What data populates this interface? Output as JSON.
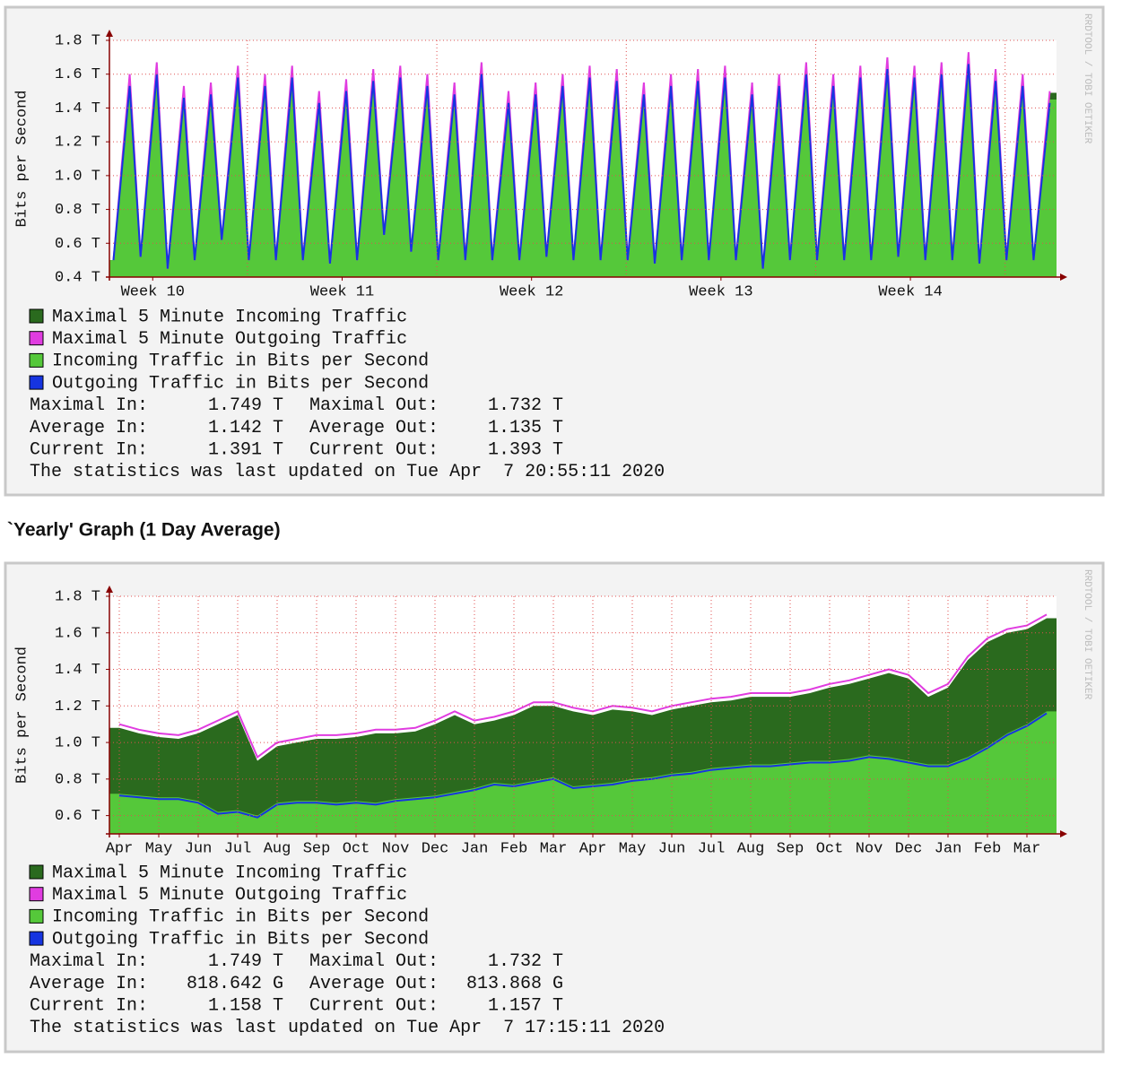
{
  "section_title": "`Yearly' Graph (1 Day Average)",
  "chart_data": [
    {
      "type": "area",
      "y_label": "Bits per Second",
      "side_text": "RRDTOOL / TOBI OETIKER",
      "grid": true,
      "xlim": [
        0,
        35
      ],
      "xticks": [
        {
          "value": 1.6,
          "label": "Week 10"
        },
        {
          "value": 8.6,
          "label": "Week 11"
        },
        {
          "value": 15.6,
          "label": "Week 12"
        },
        {
          "value": 22.6,
          "label": "Week 13"
        },
        {
          "value": 29.6,
          "label": "Week 14"
        }
      ],
      "xgrid": [
        5.1,
        12.1,
        19.1,
        26.1,
        33.1
      ],
      "ylim": [
        0.4,
        1.8
      ],
      "yticks": [
        {
          "value": 0.4,
          "label": "0.4 T"
        },
        {
          "value": 0.6,
          "label": "0.6 T"
        },
        {
          "value": 0.8,
          "label": "0.8 T"
        },
        {
          "value": 1.0,
          "label": "1.0 T"
        },
        {
          "value": 1.2,
          "label": "1.2 T"
        },
        {
          "value": 1.4,
          "label": "1.4 T"
        },
        {
          "value": 1.6,
          "label": "1.6 T"
        },
        {
          "value": 1.8,
          "label": "1.8 T"
        }
      ],
      "x": [
        0.15,
        0.75,
        1.15,
        1.75,
        2.15,
        2.75,
        3.15,
        3.75,
        4.15,
        4.75,
        5.15,
        5.75,
        6.15,
        6.75,
        7.15,
        7.75,
        8.15,
        8.75,
        9.15,
        9.75,
        10.15,
        10.75,
        11.15,
        11.75,
        12.15,
        12.75,
        13.15,
        13.75,
        14.15,
        14.75,
        15.15,
        15.75,
        16.15,
        16.75,
        17.15,
        17.75,
        18.15,
        18.75,
        19.15,
        19.75,
        20.15,
        20.75,
        21.15,
        21.75,
        22.15,
        22.75,
        23.15,
        23.75,
        24.15,
        24.75,
        25.15,
        25.75,
        26.15,
        26.75,
        27.15,
        27.75,
        28.15,
        28.75,
        29.15,
        29.75,
        30.15,
        30.75,
        31.15,
        31.75,
        32.15,
        32.75,
        33.15,
        33.75,
        34.15,
        34.75
      ],
      "series": [
        {
          "name": "Maximal 5 Minute Incoming Traffic",
          "color": "#2a6a1e",
          "style": "area",
          "values": [
            0.5,
            1.59,
            0.52,
            1.66,
            0.45,
            1.52,
            0.5,
            1.54,
            0.62,
            1.64,
            0.5,
            1.59,
            0.5,
            1.64,
            0.5,
            1.49,
            0.48,
            1.56,
            0.5,
            1.62,
            0.65,
            1.64,
            0.55,
            1.59,
            0.5,
            1.54,
            0.5,
            1.66,
            0.5,
            1.49,
            0.5,
            1.54,
            0.52,
            1.59,
            0.5,
            1.64,
            0.5,
            1.62,
            0.5,
            1.54,
            0.48,
            1.59,
            0.5,
            1.62,
            0.5,
            1.64,
            0.5,
            1.54,
            0.45,
            1.59,
            0.5,
            1.66,
            0.5,
            1.59,
            0.5,
            1.64,
            0.5,
            1.69,
            0.52,
            1.64,
            0.5,
            1.66,
            0.5,
            1.72,
            0.48,
            1.62,
            0.5,
            1.59,
            0.5,
            1.49
          ]
        },
        {
          "name": "Maximal 5 Minute Outgoing Traffic",
          "color": "#e03ce0",
          "style": "line",
          "values": [
            0.5,
            1.6,
            0.52,
            1.67,
            0.45,
            1.53,
            0.5,
            1.55,
            0.62,
            1.65,
            0.5,
            1.6,
            0.5,
            1.65,
            0.5,
            1.5,
            0.48,
            1.57,
            0.5,
            1.63,
            0.65,
            1.65,
            0.55,
            1.6,
            0.5,
            1.55,
            0.5,
            1.67,
            0.5,
            1.5,
            0.5,
            1.55,
            0.52,
            1.6,
            0.5,
            1.65,
            0.5,
            1.63,
            0.5,
            1.55,
            0.48,
            1.6,
            0.5,
            1.63,
            0.5,
            1.65,
            0.5,
            1.55,
            0.45,
            1.6,
            0.5,
            1.67,
            0.5,
            1.6,
            0.5,
            1.65,
            0.5,
            1.7,
            0.52,
            1.65,
            0.5,
            1.67,
            0.5,
            1.73,
            0.48,
            1.63,
            0.5,
            1.6,
            0.5,
            1.5
          ]
        },
        {
          "name": "Incoming Traffic in Bits per Second",
          "color": "#55c83a",
          "style": "area",
          "values": [
            0.5,
            1.55,
            0.52,
            1.62,
            0.45,
            1.48,
            0.5,
            1.5,
            0.62,
            1.6,
            0.5,
            1.55,
            0.5,
            1.6,
            0.5,
            1.45,
            0.48,
            1.52,
            0.5,
            1.58,
            0.65,
            1.6,
            0.55,
            1.55,
            0.5,
            1.5,
            0.5,
            1.62,
            0.5,
            1.45,
            0.5,
            1.5,
            0.52,
            1.55,
            0.5,
            1.6,
            0.5,
            1.58,
            0.5,
            1.5,
            0.48,
            1.55,
            0.5,
            1.58,
            0.5,
            1.6,
            0.5,
            1.5,
            0.45,
            1.55,
            0.5,
            1.62,
            0.5,
            1.55,
            0.5,
            1.6,
            0.5,
            1.65,
            0.52,
            1.6,
            0.5,
            1.62,
            0.5,
            1.68,
            0.48,
            1.58,
            0.5,
            1.55,
            0.5,
            1.45
          ]
        },
        {
          "name": "Outgoing Traffic in Bits per Second",
          "color": "#1634e0",
          "style": "line",
          "values": [
            0.5,
            1.53,
            0.52,
            1.6,
            0.45,
            1.46,
            0.5,
            1.48,
            0.62,
            1.58,
            0.5,
            1.53,
            0.5,
            1.58,
            0.5,
            1.43,
            0.48,
            1.5,
            0.5,
            1.56,
            0.65,
            1.58,
            0.55,
            1.53,
            0.5,
            1.48,
            0.5,
            1.6,
            0.5,
            1.43,
            0.5,
            1.48,
            0.52,
            1.53,
            0.5,
            1.58,
            0.5,
            1.56,
            0.5,
            1.48,
            0.48,
            1.53,
            0.5,
            1.56,
            0.5,
            1.58,
            0.5,
            1.48,
            0.45,
            1.53,
            0.5,
            1.6,
            0.5,
            1.53,
            0.5,
            1.58,
            0.5,
            1.63,
            0.52,
            1.58,
            0.5,
            1.6,
            0.5,
            1.66,
            0.48,
            1.56,
            0.5,
            1.53,
            0.5,
            1.43
          ]
        }
      ],
      "stats": {
        "rows": [
          [
            "Maximal In:",
            "1.749 T",
            "Maximal Out:",
            "1.732 T"
          ],
          [
            "Average In:",
            "1.142 T",
            "Average Out:",
            "1.135 T"
          ],
          [
            "Current In:",
            "1.391 T",
            "Current Out:",
            "1.393 T"
          ]
        ],
        "footer": "The statistics was last updated on Tue Apr  7 20:55:11 2020"
      }
    },
    {
      "type": "area",
      "y_label": "Bits per Second",
      "side_text": "RRDTOOL / TOBI OETIKER",
      "grid": true,
      "xlim": [
        -0.25,
        23.75
      ],
      "xticks": [
        {
          "value": 0,
          "label": "Apr"
        },
        {
          "value": 1,
          "label": "May"
        },
        {
          "value": 2,
          "label": "Jun"
        },
        {
          "value": 3,
          "label": "Jul"
        },
        {
          "value": 4,
          "label": "Aug"
        },
        {
          "value": 5,
          "label": "Sep"
        },
        {
          "value": 6,
          "label": "Oct"
        },
        {
          "value": 7,
          "label": "Nov"
        },
        {
          "value": 8,
          "label": "Dec"
        },
        {
          "value": 9,
          "label": "Jan"
        },
        {
          "value": 10,
          "label": "Feb"
        },
        {
          "value": 11,
          "label": "Mar"
        },
        {
          "value": 12,
          "label": "Apr"
        },
        {
          "value": 13,
          "label": "May"
        },
        {
          "value": 14,
          "label": "Jun"
        },
        {
          "value": 15,
          "label": "Jul"
        },
        {
          "value": 16,
          "label": "Aug"
        },
        {
          "value": 17,
          "label": "Sep"
        },
        {
          "value": 18,
          "label": "Oct"
        },
        {
          "value": 19,
          "label": "Nov"
        },
        {
          "value": 20,
          "label": "Dec"
        },
        {
          "value": 21,
          "label": "Jan"
        },
        {
          "value": 22,
          "label": "Feb"
        },
        {
          "value": 23,
          "label": "Mar"
        }
      ],
      "ylim": [
        0.5,
        1.8
      ],
      "yticks": [
        {
          "value": 0.6,
          "label": "0.6 T"
        },
        {
          "value": 0.8,
          "label": "0.8 T"
        },
        {
          "value": 1.0,
          "label": "1.0 T"
        },
        {
          "value": 1.2,
          "label": "1.2 T"
        },
        {
          "value": 1.4,
          "label": "1.4 T"
        },
        {
          "value": 1.6,
          "label": "1.6 T"
        },
        {
          "value": 1.8,
          "label": "1.8 T"
        }
      ],
      "x": [
        0,
        0.5,
        1,
        1.5,
        2,
        2.5,
        3,
        3.5,
        4,
        4.5,
        5,
        5.5,
        6,
        6.5,
        7,
        7.5,
        8,
        8.5,
        9,
        9.5,
        10,
        10.5,
        11,
        11.5,
        12,
        12.5,
        13,
        13.5,
        14,
        14.5,
        15,
        15.5,
        16,
        16.5,
        17,
        17.5,
        18,
        18.5,
        19,
        19.5,
        20,
        20.5,
        21,
        21.5,
        22,
        22.5,
        23,
        23.5
      ],
      "series": [
        {
          "name": "Maximal 5 Minute Incoming Traffic",
          "color": "#2a6a1e",
          "style": "area",
          "values": [
            1.08,
            1.05,
            1.03,
            1.02,
            1.05,
            1.1,
            1.15,
            0.9,
            0.98,
            1.0,
            1.02,
            1.02,
            1.03,
            1.05,
            1.05,
            1.06,
            1.1,
            1.15,
            1.1,
            1.12,
            1.15,
            1.2,
            1.2,
            1.17,
            1.15,
            1.18,
            1.17,
            1.15,
            1.18,
            1.2,
            1.22,
            1.23,
            1.25,
            1.25,
            1.25,
            1.27,
            1.3,
            1.32,
            1.35,
            1.38,
            1.35,
            1.25,
            1.3,
            1.45,
            1.55,
            1.6,
            1.62,
            1.68
          ]
        },
        {
          "name": "Maximal 5 Minute Outgoing Traffic",
          "color": "#e03ce0",
          "style": "line",
          "values": [
            1.1,
            1.07,
            1.05,
            1.04,
            1.07,
            1.12,
            1.17,
            0.92,
            1.0,
            1.02,
            1.04,
            1.04,
            1.05,
            1.07,
            1.07,
            1.08,
            1.12,
            1.17,
            1.12,
            1.14,
            1.17,
            1.22,
            1.22,
            1.19,
            1.17,
            1.2,
            1.19,
            1.17,
            1.2,
            1.22,
            1.24,
            1.25,
            1.27,
            1.27,
            1.27,
            1.29,
            1.32,
            1.34,
            1.37,
            1.4,
            1.37,
            1.27,
            1.32,
            1.47,
            1.57,
            1.62,
            1.64,
            1.7
          ]
        },
        {
          "name": "Incoming Traffic in Bits per Second",
          "color": "#55c83a",
          "style": "area",
          "values": [
            0.72,
            0.71,
            0.7,
            0.7,
            0.68,
            0.62,
            0.63,
            0.6,
            0.67,
            0.68,
            0.68,
            0.67,
            0.68,
            0.67,
            0.69,
            0.7,
            0.71,
            0.73,
            0.75,
            0.78,
            0.77,
            0.79,
            0.81,
            0.76,
            0.77,
            0.78,
            0.8,
            0.81,
            0.83,
            0.84,
            0.86,
            0.87,
            0.88,
            0.88,
            0.89,
            0.9,
            0.9,
            0.91,
            0.93,
            0.92,
            0.9,
            0.88,
            0.88,
            0.92,
            0.98,
            1.05,
            1.1,
            1.17
          ]
        },
        {
          "name": "Outgoing Traffic in Bits per Second",
          "color": "#1634e0",
          "style": "line",
          "values": [
            0.71,
            0.7,
            0.69,
            0.69,
            0.67,
            0.61,
            0.62,
            0.59,
            0.66,
            0.67,
            0.67,
            0.66,
            0.67,
            0.66,
            0.68,
            0.69,
            0.7,
            0.72,
            0.74,
            0.77,
            0.76,
            0.78,
            0.8,
            0.75,
            0.76,
            0.77,
            0.79,
            0.8,
            0.82,
            0.83,
            0.85,
            0.86,
            0.87,
            0.87,
            0.88,
            0.89,
            0.89,
            0.9,
            0.92,
            0.91,
            0.89,
            0.87,
            0.87,
            0.91,
            0.97,
            1.04,
            1.09,
            1.16
          ]
        }
      ],
      "stats": {
        "rows": [
          [
            "Maximal In:",
            "1.749 T",
            "Maximal Out:",
            "1.732 T"
          ],
          [
            "Average In:",
            "818.642 G",
            "Average Out:",
            "813.868 G"
          ],
          [
            "Current In:",
            "1.158 T",
            "Current Out:",
            "1.157 T"
          ]
        ],
        "footer": "The statistics was last updated on Tue Apr  7 17:15:11 2020"
      }
    }
  ]
}
